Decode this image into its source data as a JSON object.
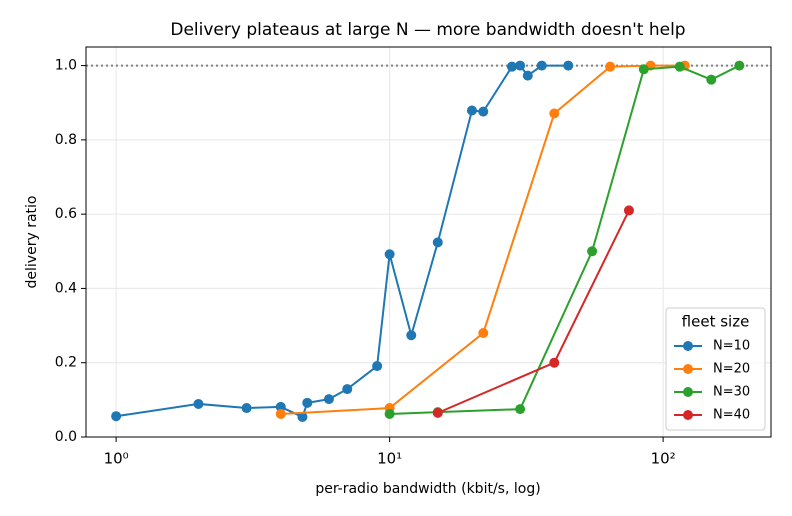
{
  "chart_data": {
    "type": "line",
    "title": "Delivery plateaus at large N — more bandwidth doesn't help",
    "xlabel": "per-radio bandwidth (kbit/s, log)",
    "ylabel": "delivery ratio",
    "xscale": "log",
    "xlim": [
      0.776,
      248
    ],
    "ylim": [
      0,
      1.05
    ],
    "xticks": [
      {
        "value": 1,
        "label": "10⁰"
      },
      {
        "value": 10,
        "label": "10¹"
      },
      {
        "value": 100,
        "label": "10²"
      }
    ],
    "yticks": [
      {
        "value": 0,
        "label": "0.0"
      },
      {
        "value": 0.2,
        "label": "0.2"
      },
      {
        "value": 0.4,
        "label": "0.4"
      },
      {
        "value": 0.6,
        "label": "0.6"
      },
      {
        "value": 0.8,
        "label": "0.8"
      },
      {
        "value": 1,
        "label": "1.0"
      }
    ],
    "grid": true,
    "hline": 1.0,
    "legend_title": "fleet size",
    "legend_loc": "lower right",
    "series": [
      {
        "name": "N=10",
        "color": "#1f77b4",
        "x": [
          1,
          2,
          3,
          4,
          4.8,
          5,
          6,
          7,
          9,
          10,
          12,
          15,
          20,
          22,
          28,
          30,
          32,
          36,
          45
        ],
        "values": [
          0.056,
          0.089,
          0.078,
          0.081,
          0.054,
          0.092,
          0.102,
          0.129,
          0.191,
          0.492,
          0.274,
          0.524,
          0.879,
          0.876,
          0.997,
          1.0,
          0.973,
          1.0,
          1.0
        ]
      },
      {
        "name": "N=20",
        "color": "#ff7f0e",
        "x": [
          4,
          10,
          22,
          40,
          64,
          90,
          120
        ],
        "values": [
          0.062,
          0.078,
          0.28,
          0.871,
          0.997,
          1.0,
          1.0
        ]
      },
      {
        "name": "N=30",
        "color": "#2ca02c",
        "x": [
          10,
          15,
          30,
          55,
          85,
          115,
          150,
          190
        ],
        "values": [
          0.062,
          0.067,
          0.075,
          0.5,
          0.99,
          0.997,
          0.962,
          1.0
        ]
      },
      {
        "name": "N=40",
        "color": "#d62728",
        "x": [
          15,
          40,
          75
        ],
        "values": [
          0.065,
          0.2,
          0.61
        ]
      }
    ]
  }
}
